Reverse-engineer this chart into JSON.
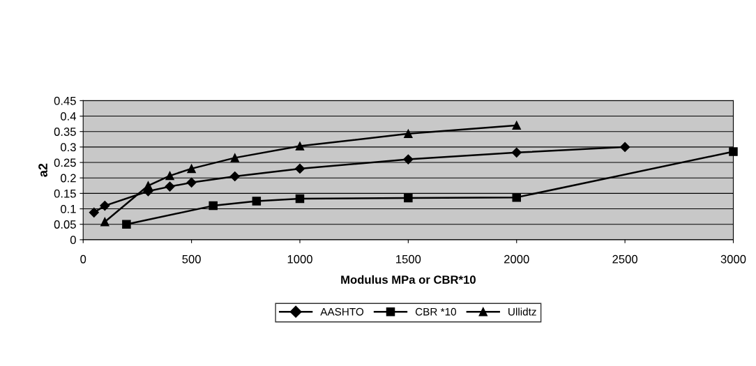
{
  "chart_data": {
    "type": "line",
    "xlabel": "Modulus MPa or CBR*10",
    "ylabel": "a2",
    "xlim": [
      0,
      3000
    ],
    "xticks": [
      0,
      500,
      1000,
      1500,
      2000,
      2500,
      3000
    ],
    "ylim": [
      0,
      0.45
    ],
    "yticks": [
      0,
      0.05,
      0.1,
      0.15,
      0.2,
      0.25,
      0.3,
      0.35,
      0.4,
      0.45
    ],
    "grid": "y",
    "legend": "bottom",
    "line_style": "solid",
    "series": [
      {
        "name": "AASHTO",
        "color": "#000000",
        "marker": "diamond",
        "x": [
          50,
          100,
          300,
          400,
          500,
          700,
          1000,
          1500,
          2000,
          2500
        ],
        "values": [
          0.088,
          0.11,
          0.157,
          0.172,
          0.185,
          0.205,
          0.23,
          0.26,
          0.282,
          0.3
        ]
      },
      {
        "name": "CBR *10",
        "color": "#000000",
        "marker": "square",
        "x": [
          200,
          600,
          800,
          1000,
          1500,
          2000,
          3000
        ],
        "values": [
          0.05,
          0.11,
          0.125,
          0.133,
          0.135,
          0.137,
          0.285
        ]
      },
      {
        "name": "Ullidtz",
        "color": "#000000",
        "marker": "triangle",
        "x": [
          100,
          300,
          400,
          500,
          700,
          1000,
          1500,
          2000
        ],
        "values": [
          0.058,
          0.175,
          0.207,
          0.23,
          0.265,
          0.303,
          0.343,
          0.37
        ]
      }
    ]
  }
}
